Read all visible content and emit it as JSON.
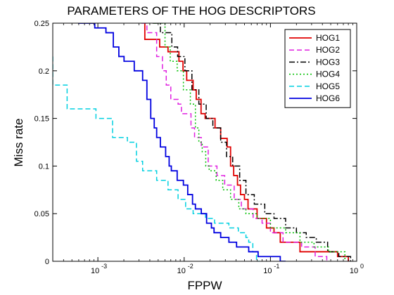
{
  "chart_data": {
    "type": "line",
    "title": "PARAMETERS OF THE HOG DESCRIPTORS",
    "xlabel": "FPPW",
    "ylabel": "Miss rate",
    "xscale": "log",
    "xlim": [
      0.0003,
      1
    ],
    "ylim": [
      0,
      0.25
    ],
    "grid": false,
    "legend_position": "top-right",
    "x_ticks": [
      {
        "value": 0.001,
        "base": "10",
        "exp": "-3"
      },
      {
        "value": 0.01,
        "base": "10",
        "exp": "-2"
      },
      {
        "value": 0.1,
        "base": "10",
        "exp": "-1"
      },
      {
        "value": 1,
        "base": "10",
        "exp": "0"
      }
    ],
    "y_ticks": [
      {
        "value": 0,
        "label": "0"
      },
      {
        "value": 0.05,
        "label": "0.05"
      },
      {
        "value": 0.1,
        "label": "0.1"
      },
      {
        "value": 0.15,
        "label": "0.15"
      },
      {
        "value": 0.2,
        "label": "0.2"
      },
      {
        "value": 0.25,
        "label": "0.25"
      }
    ],
    "series": [
      {
        "name": "HOG1",
        "color": "#e00000",
        "dash": "solid",
        "points": [
          [
            0.0035,
            0.25
          ],
          [
            0.0035,
            0.233
          ],
          [
            0.0052,
            0.233
          ],
          [
            0.0052,
            0.225
          ],
          [
            0.0065,
            0.225
          ],
          [
            0.0065,
            0.22
          ],
          [
            0.0087,
            0.22
          ],
          [
            0.0087,
            0.21
          ],
          [
            0.0097,
            0.21
          ],
          [
            0.0097,
            0.2
          ],
          [
            0.0107,
            0.2
          ],
          [
            0.0107,
            0.19
          ],
          [
            0.0127,
            0.19
          ],
          [
            0.0127,
            0.18
          ],
          [
            0.0138,
            0.18
          ],
          [
            0.0138,
            0.17
          ],
          [
            0.0157,
            0.17
          ],
          [
            0.0157,
            0.155
          ],
          [
            0.0175,
            0.155
          ],
          [
            0.0175,
            0.15
          ],
          [
            0.0228,
            0.15
          ],
          [
            0.0228,
            0.14
          ],
          [
            0.0265,
            0.14
          ],
          [
            0.0265,
            0.129
          ],
          [
            0.0315,
            0.129
          ],
          [
            0.0315,
            0.12
          ],
          [
            0.0345,
            0.12
          ],
          [
            0.0345,
            0.1
          ],
          [
            0.0375,
            0.1
          ],
          [
            0.0375,
            0.09
          ],
          [
            0.0415,
            0.09
          ],
          [
            0.0415,
            0.08
          ],
          [
            0.045,
            0.08
          ],
          [
            0.045,
            0.07
          ],
          [
            0.05,
            0.07
          ],
          [
            0.05,
            0.065
          ],
          [
            0.055,
            0.065
          ],
          [
            0.055,
            0.055
          ],
          [
            0.07,
            0.055
          ],
          [
            0.07,
            0.045
          ],
          [
            0.09,
            0.045
          ],
          [
            0.09,
            0.035
          ],
          [
            0.11,
            0.035
          ],
          [
            0.11,
            0.03
          ],
          [
            0.13,
            0.03
          ],
          [
            0.13,
            0.02
          ],
          [
            0.22,
            0.02
          ],
          [
            0.22,
            0.01
          ],
          [
            0.6,
            0.01
          ],
          [
            0.6,
            0.005
          ],
          [
            0.8,
            0.005
          ],
          [
            0.8,
            0
          ]
        ]
      },
      {
        "name": "HOG2",
        "color": "#e020e0",
        "dash": "7,4",
        "points": [
          [
            0.0032,
            0.25
          ],
          [
            0.0037,
            0.25
          ],
          [
            0.0037,
            0.24
          ],
          [
            0.0048,
            0.24
          ],
          [
            0.0048,
            0.215
          ],
          [
            0.0056,
            0.215
          ],
          [
            0.0056,
            0.2
          ],
          [
            0.0062,
            0.2
          ],
          [
            0.0062,
            0.185
          ],
          [
            0.007,
            0.185
          ],
          [
            0.007,
            0.17
          ],
          [
            0.0085,
            0.17
          ],
          [
            0.0085,
            0.165
          ],
          [
            0.0093,
            0.165
          ],
          [
            0.0093,
            0.155
          ],
          [
            0.012,
            0.155
          ],
          [
            0.012,
            0.14
          ],
          [
            0.0132,
            0.14
          ],
          [
            0.0132,
            0.13
          ],
          [
            0.0158,
            0.13
          ],
          [
            0.0158,
            0.12
          ],
          [
            0.019,
            0.12
          ],
          [
            0.019,
            0.1
          ],
          [
            0.024,
            0.1
          ],
          [
            0.024,
            0.09
          ],
          [
            0.0295,
            0.09
          ],
          [
            0.0295,
            0.08
          ],
          [
            0.038,
            0.08
          ],
          [
            0.038,
            0.065
          ],
          [
            0.046,
            0.065
          ],
          [
            0.046,
            0.055
          ],
          [
            0.063,
            0.055
          ],
          [
            0.063,
            0.045
          ],
          [
            0.08,
            0.045
          ],
          [
            0.08,
            0.04
          ],
          [
            0.1,
            0.04
          ],
          [
            0.1,
            0.03
          ],
          [
            0.14,
            0.03
          ],
          [
            0.14,
            0.02
          ],
          [
            0.23,
            0.02
          ],
          [
            0.23,
            0.015
          ],
          [
            0.33,
            0.015
          ],
          [
            0.33,
            0.005
          ],
          [
            0.45,
            0.005
          ],
          [
            0.45,
            0
          ]
        ]
      },
      {
        "name": "HOG3",
        "color": "#000000",
        "dash": "8,3,2,3",
        "points": [
          [
            0.0043,
            0.25
          ],
          [
            0.0053,
            0.25
          ],
          [
            0.0053,
            0.24
          ],
          [
            0.0072,
            0.24
          ],
          [
            0.0072,
            0.225
          ],
          [
            0.0084,
            0.225
          ],
          [
            0.0084,
            0.215
          ],
          [
            0.0102,
            0.215
          ],
          [
            0.0102,
            0.2
          ],
          [
            0.0123,
            0.2
          ],
          [
            0.0123,
            0.18
          ],
          [
            0.0148,
            0.18
          ],
          [
            0.0148,
            0.165
          ],
          [
            0.018,
            0.165
          ],
          [
            0.018,
            0.15
          ],
          [
            0.0215,
            0.15
          ],
          [
            0.0215,
            0.14
          ],
          [
            0.0265,
            0.14
          ],
          [
            0.0265,
            0.125
          ],
          [
            0.031,
            0.125
          ],
          [
            0.031,
            0.11
          ],
          [
            0.0365,
            0.11
          ],
          [
            0.0365,
            0.1
          ],
          [
            0.044,
            0.1
          ],
          [
            0.044,
            0.085
          ],
          [
            0.052,
            0.085
          ],
          [
            0.052,
            0.07
          ],
          [
            0.065,
            0.07
          ],
          [
            0.065,
            0.06
          ],
          [
            0.086,
            0.06
          ],
          [
            0.086,
            0.05
          ],
          [
            0.11,
            0.05
          ],
          [
            0.11,
            0.045
          ],
          [
            0.15,
            0.045
          ],
          [
            0.15,
            0.035
          ],
          [
            0.2,
            0.035
          ],
          [
            0.2,
            0.03
          ],
          [
            0.26,
            0.03
          ],
          [
            0.26,
            0.025
          ],
          [
            0.34,
            0.025
          ],
          [
            0.34,
            0.02
          ],
          [
            0.46,
            0.02
          ],
          [
            0.46,
            0.01
          ],
          [
            0.62,
            0.01
          ],
          [
            0.62,
            0.005
          ],
          [
            0.85,
            0.005
          ],
          [
            0.85,
            0
          ]
        ]
      },
      {
        "name": "HOG4",
        "color": "#00c000",
        "dash": "2,3",
        "points": [
          [
            0.0045,
            0.25
          ],
          [
            0.006,
            0.25
          ],
          [
            0.006,
            0.225
          ],
          [
            0.0069,
            0.225
          ],
          [
            0.0069,
            0.21
          ],
          [
            0.0083,
            0.21
          ],
          [
            0.0083,
            0.2
          ],
          [
            0.0098,
            0.2
          ],
          [
            0.0098,
            0.18
          ],
          [
            0.0118,
            0.18
          ],
          [
            0.0118,
            0.165
          ],
          [
            0.0135,
            0.165
          ],
          [
            0.0135,
            0.14
          ],
          [
            0.0148,
            0.14
          ],
          [
            0.0148,
            0.125
          ],
          [
            0.0162,
            0.125
          ],
          [
            0.0162,
            0.115
          ],
          [
            0.0178,
            0.115
          ],
          [
            0.0178,
            0.1
          ],
          [
            0.0195,
            0.1
          ],
          [
            0.0195,
            0.095
          ],
          [
            0.0235,
            0.095
          ],
          [
            0.0235,
            0.085
          ],
          [
            0.028,
            0.085
          ],
          [
            0.028,
            0.075
          ],
          [
            0.0345,
            0.075
          ],
          [
            0.0345,
            0.065
          ],
          [
            0.043,
            0.065
          ],
          [
            0.043,
            0.055
          ],
          [
            0.052,
            0.055
          ],
          [
            0.052,
            0.05
          ],
          [
            0.07,
            0.05
          ],
          [
            0.07,
            0.045
          ],
          [
            0.1,
            0.045
          ],
          [
            0.1,
            0.035
          ],
          [
            0.15,
            0.035
          ],
          [
            0.15,
            0.03
          ],
          [
            0.22,
            0.03
          ],
          [
            0.22,
            0.02
          ],
          [
            0.32,
            0.02
          ],
          [
            0.32,
            0.015
          ],
          [
            0.47,
            0.015
          ],
          [
            0.47,
            0.01
          ],
          [
            0.73,
            0.01
          ],
          [
            0.73,
            0
          ]
        ]
      },
      {
        "name": "HOG5",
        "color": "#00d0e0",
        "dash": "7,4",
        "points": [
          [
            0.0003,
            0.215
          ],
          [
            0.0003,
            0.185
          ],
          [
            0.00044,
            0.185
          ],
          [
            0.00044,
            0.16
          ],
          [
            0.00095,
            0.16
          ],
          [
            0.00095,
            0.15
          ],
          [
            0.00148,
            0.15
          ],
          [
            0.00148,
            0.13
          ],
          [
            0.0022,
            0.13
          ],
          [
            0.0022,
            0.125
          ],
          [
            0.0028,
            0.125
          ],
          [
            0.0028,
            0.105
          ],
          [
            0.0033,
            0.105
          ],
          [
            0.0033,
            0.095
          ],
          [
            0.0048,
            0.095
          ],
          [
            0.0048,
            0.085
          ],
          [
            0.0065,
            0.085
          ],
          [
            0.0065,
            0.075
          ],
          [
            0.0085,
            0.075
          ],
          [
            0.0085,
            0.065
          ],
          [
            0.0104,
            0.065
          ],
          [
            0.0104,
            0.055
          ],
          [
            0.0127,
            0.055
          ],
          [
            0.0127,
            0.05
          ],
          [
            0.0177,
            0.05
          ],
          [
            0.0177,
            0.045
          ],
          [
            0.0225,
            0.045
          ],
          [
            0.0225,
            0.04
          ],
          [
            0.033,
            0.04
          ],
          [
            0.033,
            0.035
          ],
          [
            0.0425,
            0.035
          ],
          [
            0.0425,
            0.03
          ],
          [
            0.052,
            0.03
          ],
          [
            0.052,
            0.025
          ],
          [
            0.056,
            0.025
          ],
          [
            0.056,
            0.02
          ],
          [
            0.0625,
            0.02
          ],
          [
            0.0625,
            0.01
          ],
          [
            0.069,
            0.01
          ],
          [
            0.069,
            0
          ],
          [
            0.075,
            0
          ]
        ]
      },
      {
        "name": "HOG6",
        "color": "#0000e0",
        "dash": "solid",
        "points": [
          [
            0.00059,
            0.25
          ],
          [
            0.00092,
            0.25
          ],
          [
            0.00092,
            0.245
          ],
          [
            0.00124,
            0.245
          ],
          [
            0.00124,
            0.24
          ],
          [
            0.00151,
            0.24
          ],
          [
            0.00151,
            0.225
          ],
          [
            0.00175,
            0.225
          ],
          [
            0.00175,
            0.215
          ],
          [
            0.00201,
            0.215
          ],
          [
            0.00201,
            0.21
          ],
          [
            0.00264,
            0.21
          ],
          [
            0.00264,
            0.2
          ],
          [
            0.0033,
            0.2
          ],
          [
            0.0033,
            0.19
          ],
          [
            0.0037,
            0.19
          ],
          [
            0.0037,
            0.17
          ],
          [
            0.0041,
            0.17
          ],
          [
            0.0041,
            0.15
          ],
          [
            0.0045,
            0.15
          ],
          [
            0.0045,
            0.14
          ],
          [
            0.0048,
            0.14
          ],
          [
            0.0048,
            0.13
          ],
          [
            0.0053,
            0.13
          ],
          [
            0.0053,
            0.12
          ],
          [
            0.0061,
            0.12
          ],
          [
            0.0061,
            0.11
          ],
          [
            0.0067,
            0.11
          ],
          [
            0.0067,
            0.1
          ],
          [
            0.0071,
            0.1
          ],
          [
            0.0071,
            0.095
          ],
          [
            0.0083,
            0.095
          ],
          [
            0.0083,
            0.085
          ],
          [
            0.0098,
            0.085
          ],
          [
            0.0098,
            0.08
          ],
          [
            0.011,
            0.08
          ],
          [
            0.011,
            0.07
          ],
          [
            0.0125,
            0.07
          ],
          [
            0.0125,
            0.06
          ],
          [
            0.0135,
            0.06
          ],
          [
            0.0135,
            0.055
          ],
          [
            0.0158,
            0.055
          ],
          [
            0.0158,
            0.05
          ],
          [
            0.0182,
            0.05
          ],
          [
            0.0182,
            0.04
          ],
          [
            0.0207,
            0.04
          ],
          [
            0.0207,
            0.035
          ],
          [
            0.0222,
            0.035
          ],
          [
            0.0222,
            0.03
          ],
          [
            0.0265,
            0.03
          ],
          [
            0.0265,
            0.025
          ],
          [
            0.033,
            0.025
          ],
          [
            0.033,
            0.02
          ],
          [
            0.0405,
            0.02
          ],
          [
            0.0405,
            0.015
          ],
          [
            0.056,
            0.015
          ],
          [
            0.056,
            0.01
          ],
          [
            0.072,
            0.01
          ],
          [
            0.072,
            0.005
          ],
          [
            0.13,
            0.005
          ],
          [
            0.13,
            0
          ],
          [
            0.15,
            0
          ]
        ]
      }
    ]
  }
}
